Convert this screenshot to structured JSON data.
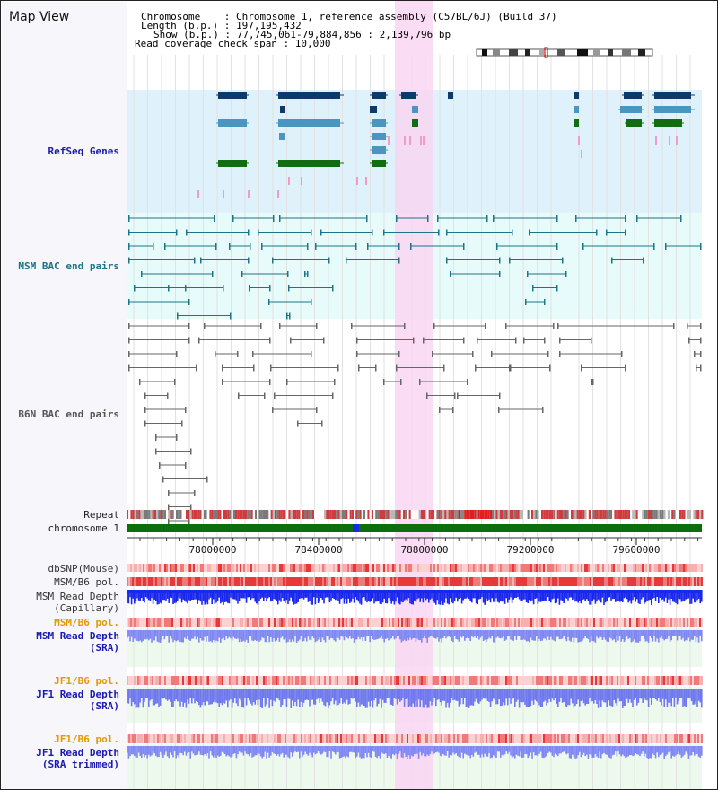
{
  "header": {
    "title": "Map View",
    "chromosome_line": "Chromosome    : Chromosome 1, reference assembly (C57BL/6J) (Build 37)",
    "length_line": "Length (b.p.) : 197,195,432",
    "show_line": "Show (b.p.) : 77,745,061-79,884,856 : 2,139,796 bp",
    "coverage_line": "Read coverage check span : 10,000"
  },
  "tracks": {
    "refseq": "RefSeq Genes",
    "msm_bac": "MSM BAC end pairs",
    "b6n_bac": "B6N BAC end pairs",
    "repeat": "Repeat",
    "chromosome": "chromosome 1",
    "dbsnp": "dbSNP(Mouse)",
    "msm_b6_pol": "MSM/B6 pol.",
    "msm_depth_cap_1": "MSM Read Depth",
    "msm_depth_cap_2": "(Capillary)",
    "msm_b6_pol_sra": "MSM/B6 pol.",
    "msm_depth_sra_1": "MSM Read Depth",
    "msm_depth_sra_2": "(SRA)",
    "jf1_b6_pol": "JF1/B6 pol.",
    "jf1_depth_1": "JF1 Read Depth",
    "jf1_depth_2": "(SRA)",
    "jf1_b6_pol_t": "JF1/B6 pol.",
    "jf1_depth_t_1": "JF1 Read Depth",
    "jf1_depth_t_2": "(SRA trimmed)"
  },
  "axis": {
    "ticks": [
      "78000000",
      "78400000",
      "78800000",
      "79200000",
      "79600000"
    ]
  },
  "colors": {
    "highlight": "#f9d6f2",
    "refseq_bg": "#dff1fa",
    "msm_bg": "#e8fbfb",
    "gene_dark": "#0e3a6a",
    "gene_mid": "#4b96c1",
    "gene_green": "#106e10",
    "msm_line": "#1d7486",
    "b6n_line": "#666666",
    "depth_blue": "#1a28ee",
    "depth_light": "#8088f2",
    "pol_red": "#e8383a",
    "label_blue": "#1a1ab0",
    "label_orange": "#e39a00",
    "chrom_green": "#0d6e0d"
  }
}
